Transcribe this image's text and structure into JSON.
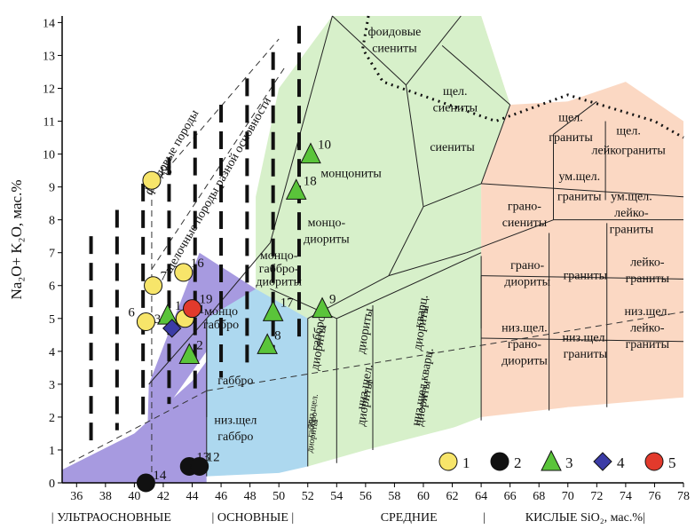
{
  "chart_data": {
    "type": "scatter",
    "ylabel": "Na₂O+ K₂O, мас.%",
    "xlabel": "SiO₂, мас.%",
    "xlim": [
      35,
      78
    ],
    "ylim": [
      0,
      14.2
    ],
    "x_ticks": [
      36,
      38,
      40,
      42,
      44,
      46,
      48,
      50,
      52,
      54,
      56,
      58,
      60,
      62,
      64,
      66,
      68,
      70,
      72,
      74,
      76,
      78
    ],
    "y_ticks": [
      0,
      1,
      2,
      3,
      4,
      5,
      6,
      7,
      8,
      9,
      10,
      11,
      12,
      13,
      14
    ],
    "fields": [
      {
        "label": "фоидовые\nсиениты",
        "color": "#d9f2cf",
        "poly": [
          [
            53.7,
            14.2
          ],
          [
            62.6,
            14.2
          ],
          [
            61.3,
            13.3
          ],
          [
            58.8,
            12.1
          ],
          [
            53.7,
            14.2
          ]
        ]
      },
      {
        "label": "щел.\nсиениты",
        "color": "#d9f2cf",
        "poly": [
          [
            58.8,
            12.1
          ],
          [
            61.3,
            13.3
          ],
          [
            62.6,
            14.2
          ],
          [
            64,
            14.2
          ],
          [
            66,
            11.5
          ],
          [
            64,
            9.1
          ],
          [
            60.5,
            9.8
          ],
          [
            58.8,
            12.1
          ]
        ]
      },
      {
        "label": "сиениты",
        "color": "#d9f2cf",
        "poly": [
          [
            58.8,
            12.1
          ],
          [
            60.5,
            9.8
          ],
          [
            64,
            9.1
          ],
          [
            66,
            11.5
          ],
          [
            67,
            9.5
          ],
          [
            65,
            8.7
          ],
          [
            60,
            8.4
          ],
          [
            58.8,
            12.1
          ]
        ]
      },
      {
        "label": "монцониты",
        "color": "#d9f2cf",
        "poly": [
          [
            50,
            12
          ],
          [
            52,
            13.3
          ],
          [
            53.7,
            14.2
          ],
          [
            58.8,
            12.1
          ],
          [
            60,
            8.4
          ],
          [
            57.6,
            6.3
          ],
          [
            52.5,
            7.3
          ],
          [
            49.4,
            7.3
          ],
          [
            50,
            12
          ]
        ]
      },
      {
        "label": "монцо-\nдиориты",
        "color": "#d9f2cf",
        "poly": [
          [
            48.4,
            8.7
          ],
          [
            49.4,
            7.3
          ],
          [
            52.5,
            7.3
          ],
          [
            57.6,
            6.3
          ],
          [
            54,
            5
          ],
          [
            49.4,
            5.9
          ],
          [
            48.4,
            8.7
          ]
        ]
      },
      {
        "label": "монцо-\nгаббро\nдиориты",
        "color": "#d9f2cf",
        "poly": [
          [
            48.4,
            8.7
          ],
          [
            49.4,
            5.9
          ],
          [
            54,
            5
          ],
          [
            52,
            4.9
          ],
          [
            50,
            4.9
          ],
          [
            48.4,
            8.7
          ]
        ]
      }
    ],
    "field_labels": [
      {
        "text": "фоидовые",
        "x": 58.0,
        "y": 13.6
      },
      {
        "text": "сиениты",
        "x": 58.0,
        "y": 13.1
      },
      {
        "text": "щел.",
        "x": 62.2,
        "y": 11.8
      },
      {
        "text": "сиениты",
        "x": 62.2,
        "y": 11.3
      },
      {
        "text": "сиениты",
        "x": 62.0,
        "y": 10.1
      },
      {
        "text": "монцониты",
        "x": 55.0,
        "y": 9.3
      },
      {
        "text": "монцо-",
        "x": 53.3,
        "y": 7.8
      },
      {
        "text": "диориты",
        "x": 53.3,
        "y": 7.3
      },
      {
        "text": "монцо-",
        "x": 50.0,
        "y": 6.8
      },
      {
        "text": "габбро-",
        "x": 50.0,
        "y": 6.4
      },
      {
        "text": "диориты",
        "x": 50.0,
        "y": 6.0
      },
      {
        "text": "монцо",
        "x": 46.0,
        "y": 5.1
      },
      {
        "text": "габбро",
        "x": 46.0,
        "y": 4.7
      },
      {
        "text": "габбро",
        "x": 47.0,
        "y": 3.0
      },
      {
        "text": "низ.щел",
        "x": 47.0,
        "y": 1.8
      },
      {
        "text": "габбро",
        "x": 47.0,
        "y": 1.3
      },
      {
        "text": "диориты",
        "x": 56.2,
        "y": 4.6
      },
      {
        "text": "кварц.",
        "x": 60.1,
        "y": 5.2
      },
      {
        "text": "диориты",
        "x": 60.1,
        "y": 4.7
      },
      {
        "text": "низ.щел.",
        "x": 56.2,
        "y": 2.9
      },
      {
        "text": "диориты",
        "x": 56.2,
        "y": 2.4
      },
      {
        "text": "низ.щел.кварц.",
        "x": 60.2,
        "y": 2.9
      },
      {
        "text": "диориты",
        "x": 60.2,
        "y": 2.4
      },
      {
        "text": "габбро-",
        "x": 53.0,
        "y": 4.6
      },
      {
        "text": "диориты",
        "x": 53.0,
        "y": 4.1
      },
      {
        "text": "низ.щел.",
        "x": 52.5,
        "y": 2.2
      },
      {
        "text": "габбро-",
        "x": 52.5,
        "y": 1.8
      },
      {
        "text": "диориты",
        "x": 52.5,
        "y": 1.4
      },
      {
        "text": "грано-",
        "x": 67.0,
        "y": 8.3
      },
      {
        "text": "сиениты",
        "x": 67.0,
        "y": 7.8
      },
      {
        "text": "ум.щел.",
        "x": 70.8,
        "y": 9.2
      },
      {
        "text": "граниты",
        "x": 70.8,
        "y": 8.6
      },
      {
        "text": "щел.",
        "x": 70.2,
        "y": 11.0
      },
      {
        "text": "граниты",
        "x": 70.2,
        "y": 10.4
      },
      {
        "text": "щел.",
        "x": 74.2,
        "y": 10.6
      },
      {
        "text": "лейкограниты",
        "x": 74.2,
        "y": 10.0
      },
      {
        "text": "ум.щел.",
        "x": 74.4,
        "y": 8.6
      },
      {
        "text": "лейко-",
        "x": 74.4,
        "y": 8.1
      },
      {
        "text": "граниты",
        "x": 74.4,
        "y": 7.6
      },
      {
        "text": "грано-",
        "x": 67.2,
        "y": 6.5
      },
      {
        "text": "диориты",
        "x": 67.2,
        "y": 6.0
      },
      {
        "text": "граниты",
        "x": 71.2,
        "y": 6.2
      },
      {
        "text": "лейко-",
        "x": 75.5,
        "y": 6.6
      },
      {
        "text": "граниты",
        "x": 75.5,
        "y": 6.1
      },
      {
        "text": "низ.щел.",
        "x": 67.0,
        "y": 4.6
      },
      {
        "text": "грано-",
        "x": 67.0,
        "y": 4.1
      },
      {
        "text": "диориты",
        "x": 67.0,
        "y": 3.6
      },
      {
        "text": "низ.щел.",
        "x": 71.2,
        "y": 4.3
      },
      {
        "text": "граниты",
        "x": 71.2,
        "y": 3.8
      },
      {
        "text": "низ.щел.",
        "x": 75.5,
        "y": 5.1
      },
      {
        "text": "лейко-",
        "x": 75.5,
        "y": 4.6
      },
      {
        "text": "граниты",
        "x": 75.5,
        "y": 4.1
      },
      {
        "text": "фоидовые породы",
        "x": 42.8,
        "y": 10.0
      },
      {
        "text": "щелочные породы разной основности",
        "x": 46.0,
        "y": 9.0
      }
    ],
    "series": [
      {
        "name": "1",
        "color": "#f7e56a",
        "marker": "circle",
        "points": [
          {
            "x": 41.2,
            "y": 9.2,
            "label": "15"
          },
          {
            "x": 41.3,
            "y": 6.0,
            "label": "7"
          },
          {
            "x": 43.4,
            "y": 6.4,
            "label": "16"
          },
          {
            "x": 40.8,
            "y": 4.9,
            "label": "6"
          },
          {
            "x": 43.5,
            "y": 5.0,
            "label": "11"
          }
        ]
      },
      {
        "name": "2",
        "color": "#111111",
        "marker": "circle",
        "points": [
          {
            "x": 40.8,
            "y": 0.0,
            "label": "14"
          },
          {
            "x": 43.8,
            "y": 0.5,
            "label": "13"
          },
          {
            "x": 44.5,
            "y": 0.5,
            "label": "12"
          }
        ]
      },
      {
        "name": "3",
        "color": "#5ac43a",
        "marker": "triangle",
        "points": [
          {
            "x": 52.2,
            "y": 10.0,
            "label": "10"
          },
          {
            "x": 51.2,
            "y": 8.9,
            "label": "18"
          },
          {
            "x": 42.3,
            "y": 5.1,
            "label": "1"
          },
          {
            "x": 43.8,
            "y": 3.9,
            "label": "2"
          },
          {
            "x": 49.6,
            "y": 5.2,
            "label": "17"
          },
          {
            "x": 49.2,
            "y": 4.2,
            "label": "8"
          },
          {
            "x": 53.0,
            "y": 5.3,
            "label": "9"
          }
        ]
      },
      {
        "name": "4",
        "color": "#3b3ca6",
        "marker": "diamond",
        "points": [
          {
            "x": 42.6,
            "y": 4.7,
            "label": "3"
          }
        ]
      },
      {
        "name": "5",
        "color": "#e23a2c",
        "marker": "circle",
        "points": [
          {
            "x": 44.0,
            "y": 5.3,
            "label": "19"
          }
        ]
      }
    ],
    "bottom_groups": [
      {
        "text": "| УЛЬТРАОСНОВНЫЕ",
        "x": 38.4
      },
      {
        "text": "| ОСНОВНЫЕ |",
        "x": 48.2
      },
      {
        "text": "СРЕДНИЕ",
        "x": 59.0
      },
      {
        "text": "|",
        "x": 64.2
      },
      {
        "text": "КИСЛЫЕ SiO₂, мас.%|",
        "x": 71.2
      }
    ],
    "legend": [
      "1",
      "2",
      "3",
      "4",
      "5"
    ]
  }
}
